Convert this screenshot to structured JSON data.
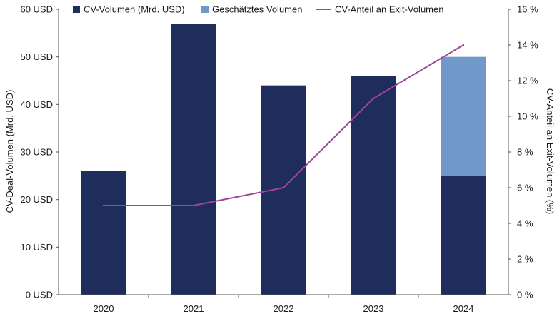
{
  "chart_data": {
    "type": "bar",
    "categories": [
      "2020",
      "2021",
      "2022",
      "2023",
      "2024"
    ],
    "series": [
      {
        "name": "CV-Volumen (Mrd. USD)",
        "type": "bar",
        "axis": "left",
        "stack": "volume",
        "color": "#1f2d5c",
        "values": [
          26,
          57,
          44,
          46,
          25
        ]
      },
      {
        "name": "Geschätztes Volumen",
        "type": "bar",
        "axis": "left",
        "stack": "volume",
        "color": "#7098c8",
        "values": [
          0,
          0,
          0,
          0,
          25
        ]
      },
      {
        "name": "CV-Anteil an Exit-Volumen",
        "type": "line",
        "axis": "right",
        "color": "#a0449a",
        "values": [
          5,
          5,
          6,
          11,
          14
        ]
      }
    ],
    "y_left": {
      "label": "CV-Deal-Volumen (Mrd. USD)",
      "range": [
        0,
        60
      ],
      "ticks": [
        0,
        10,
        20,
        30,
        40,
        50,
        60
      ],
      "tick_labels": [
        "0 USD",
        "10 USD",
        "20 USD",
        "30 USD",
        "40 USD",
        "50 USD",
        "60 USD"
      ]
    },
    "y_right": {
      "label": "CV-Anteil an Exit-Volumen (%)",
      "range": [
        0,
        16
      ],
      "ticks": [
        0,
        2,
        4,
        6,
        8,
        10,
        12,
        14,
        16
      ],
      "tick_labels": [
        "0 %",
        "2 %",
        "4 %",
        "6 %",
        "8 %",
        "10 %",
        "12 %",
        "14 %",
        "16 %"
      ]
    },
    "legend_position": "top",
    "grid": false
  }
}
